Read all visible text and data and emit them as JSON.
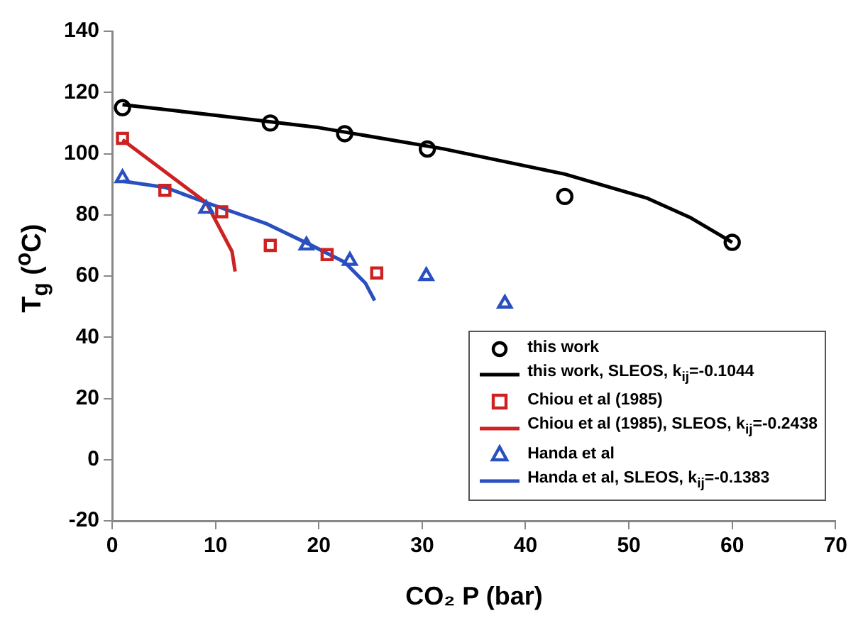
{
  "chart_data": {
    "type": "scatter",
    "xlabel": "CO₂ P (bar)",
    "ylabel": "T$_{g}$ ($^{o}$C)",
    "xlim": [
      0,
      70
    ],
    "xticks": [
      0,
      10,
      20,
      30,
      40,
      50,
      60,
      70
    ],
    "ylim": [
      -20,
      140
    ],
    "yticks": [
      -20,
      0,
      20,
      40,
      60,
      80,
      100,
      120,
      140
    ],
    "grid": false,
    "legend": "bottom right",
    "series": [
      {
        "name": "this work",
        "type": "scatter",
        "marker": "circle",
        "color": "#000000",
        "x": [
          1,
          15.3,
          22.5,
          30.5,
          43.8,
          60
        ],
        "values": [
          115,
          110,
          106.5,
          101.5,
          86,
          71
        ]
      },
      {
        "name": "this work, SLEOS, k$_{ij}$=-0.1044",
        "type": "line",
        "marker": "none",
        "color": "#000000",
        "x": [
          1,
          10,
          20,
          32,
          43.8,
          51.8,
          56,
          60
        ],
        "values": [
          116,
          112.5,
          108.5,
          101.6,
          93.3,
          85.4,
          79,
          71
        ]
      },
      {
        "name": "Chiou et al (1985)",
        "type": "scatter",
        "marker": "square",
        "color": "#cc2222",
        "x": [
          1,
          5.1,
          10.6,
          15.3,
          20.8,
          25.6
        ],
        "values": [
          105,
          88,
          81,
          70,
          67,
          61
        ]
      },
      {
        "name": "Chiou et al (1985), SLEOS, k$_{ij}$=-0.2438",
        "type": "line",
        "marker": "none",
        "color": "#cc2222",
        "x": [
          1,
          9.1,
          11.6,
          11.9
        ],
        "values": [
          104.5,
          84,
          68,
          61.5
        ]
      },
      {
        "name": "Handa et al",
        "type": "scatter",
        "marker": "triangle",
        "color": "#2a4fbf",
        "x": [
          1,
          9.1,
          18.8,
          23,
          30.4,
          38
        ],
        "values": [
          92,
          82,
          70,
          65,
          60,
          51
        ]
      },
      {
        "name": "Handa et al, SLEOS, k$_{ij}$=-0.1383",
        "type": "line",
        "marker": "none",
        "color": "#2a4fbf",
        "x": [
          1,
          5.1,
          9.1,
          15,
          19.3,
          22.5,
          24.5,
          25.4
        ],
        "values": [
          91,
          89,
          84,
          77,
          70,
          64.5,
          57.7,
          52
        ]
      }
    ]
  }
}
